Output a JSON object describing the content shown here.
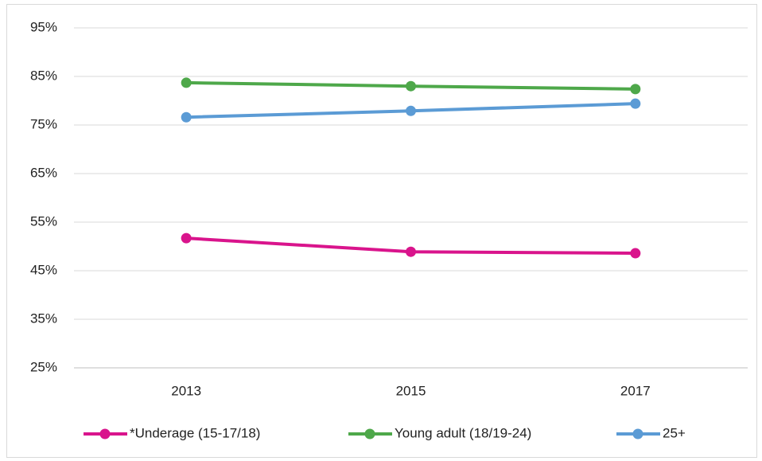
{
  "chart_data": {
    "type": "line",
    "categories": [
      "2013",
      "2015",
      "2017"
    ],
    "series": [
      {
        "name": "*Underage (15-17/18)",
        "color": "#d9148c",
        "values": [
          51.7,
          48.9,
          48.6
        ]
      },
      {
        "name": "Young adult (18/19-24)",
        "color": "#4ea84a",
        "values": [
          83.7,
          83.0,
          82.4
        ]
      },
      {
        "name": "25+",
        "color": "#5b9bd5",
        "values": [
          76.6,
          77.9,
          79.4
        ]
      }
    ],
    "ylim": [
      25,
      95
    ],
    "yticks": [
      {
        "value": 25,
        "label": "25%"
      },
      {
        "value": 35,
        "label": "35%"
      },
      {
        "value": 45,
        "label": "45%"
      },
      {
        "value": 55,
        "label": "55%"
      },
      {
        "value": 65,
        "label": "65%"
      },
      {
        "value": 75,
        "label": "75%"
      },
      {
        "value": 85,
        "label": "85%"
      },
      {
        "value": 95,
        "label": "95%"
      }
    ],
    "grid": true,
    "legend": "bottom"
  }
}
